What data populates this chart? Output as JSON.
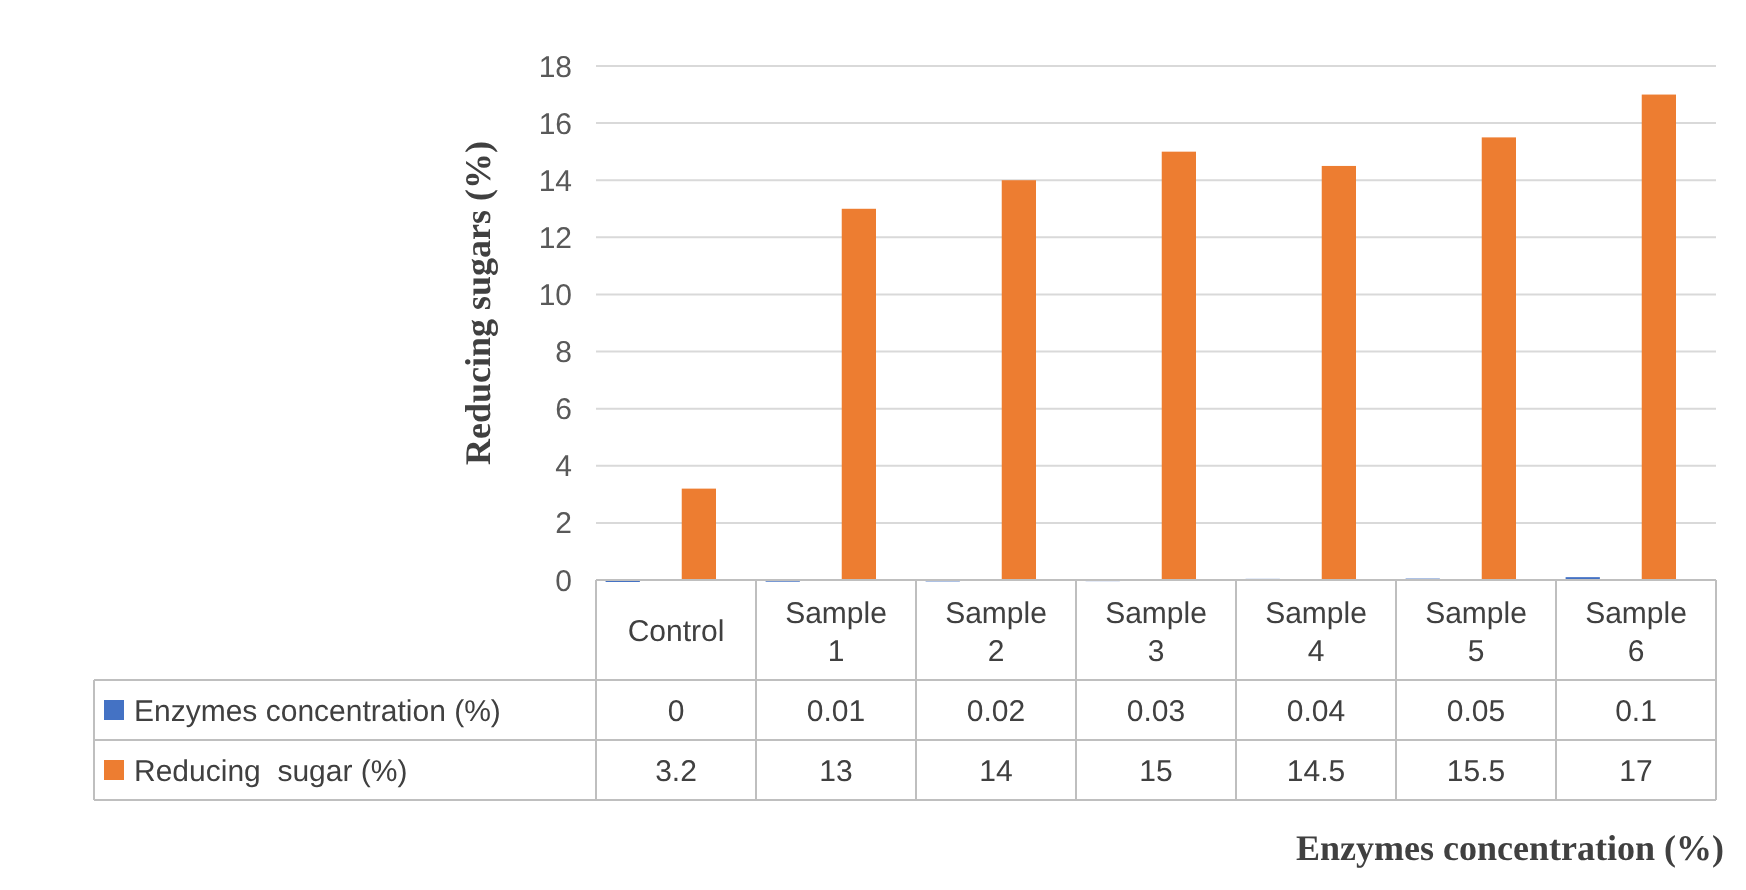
{
  "chart_data": {
    "type": "bar",
    "xlabel": "Enzymes concentration (%)",
    "ylabel": "Reducing sugars (%)",
    "categories": [
      "Control",
      "Sample 1",
      "Sample 2",
      "Sample 3",
      "Sample 4",
      "Sample 5",
      "Sample 6"
    ],
    "series": [
      {
        "name": "Enzymes concentration (%)",
        "color": "#4472c4",
        "values": [
          0,
          0.01,
          0.02,
          0.03,
          0.04,
          0.05,
          0.1
        ]
      },
      {
        "name": "Reducing  sugar (%)",
        "color": "#ed7d31",
        "values": [
          3.2,
          13,
          14,
          15,
          14.5,
          15.5,
          17
        ]
      }
    ],
    "ylim": [
      0,
      18
    ],
    "yticks": [
      0,
      2,
      4,
      6,
      8,
      10,
      12,
      14,
      16,
      18
    ],
    "grid": "y",
    "data_labels": true,
    "legend": "bottom"
  }
}
